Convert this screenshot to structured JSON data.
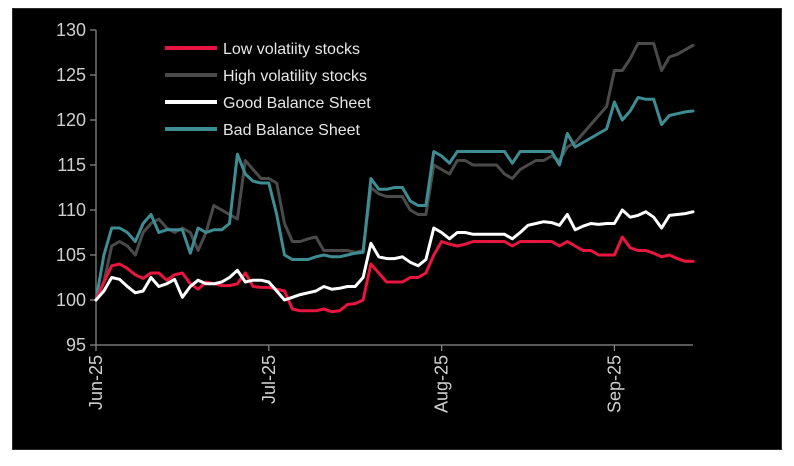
{
  "chart_data": {
    "type": "line",
    "title": "",
    "xlabel": "",
    "ylabel": "",
    "ylim": [
      95,
      130
    ],
    "yticks": [
      95,
      100,
      105,
      110,
      115,
      120,
      125,
      130
    ],
    "xtick_labels": [
      "Jun-25",
      "Jul-25",
      "Aug-25",
      "Sep-25"
    ],
    "xtick_index": [
      0,
      22,
      44,
      66
    ],
    "legend_position": "top-left",
    "grid": false,
    "series": [
      {
        "name": "Low volatiity stocks",
        "color": "#e8153f",
        "values": [
          100,
          102,
          103.8,
          104,
          103.5,
          102.8,
          102.4,
          103,
          103,
          102.2,
          102.8,
          103,
          101.8,
          101.2,
          102,
          101.8,
          101.6,
          101.6,
          101.8,
          103,
          101.5,
          101.4,
          101.4,
          101.2,
          101,
          99,
          98.8,
          98.8,
          98.8,
          99,
          98.7,
          98.8,
          99.5,
          99.6,
          100,
          104,
          103,
          102,
          102,
          102,
          102.5,
          102.5,
          103,
          105,
          106.5,
          106.2,
          106,
          106.2,
          106.5,
          106.5,
          106.5,
          106.5,
          106.5,
          106,
          106.5,
          106.5,
          106.5,
          106.5,
          106.5,
          106,
          106.5,
          106,
          105.5,
          105.5,
          105,
          105,
          105,
          107,
          105.8,
          105.5,
          105.5,
          105.2,
          104.8,
          105,
          104.6,
          104.3,
          104.3
        ]
      },
      {
        "name": "High volatility stocks",
        "color": "#4a4a4a",
        "values": [
          100,
          102,
          106,
          106.5,
          106,
          105,
          107.5,
          108.5,
          109,
          108,
          107.5,
          108,
          107.5,
          105.5,
          107.5,
          110.5,
          110,
          109.5,
          109,
          115.5,
          114.5,
          113.5,
          113.5,
          113,
          108.5,
          106.5,
          106.5,
          106.8,
          107,
          105.5,
          105.5,
          105.5,
          105.5,
          105.3,
          105.5,
          112.5,
          111.8,
          111.5,
          111.5,
          111.5,
          110,
          109.5,
          109.5,
          115,
          114.5,
          114,
          115.5,
          115.5,
          115,
          115,
          115,
          115,
          114,
          113.5,
          114.5,
          115,
          115.5,
          115.5,
          116,
          115.5,
          117,
          117.5,
          118.5,
          119.5,
          120.5,
          121.5,
          125.5,
          125.5,
          126.8,
          128.5,
          128.5,
          128.5,
          125.5,
          127,
          127.3,
          127.8,
          128.3
        ]
      },
      {
        "name": "Good Balance Sheet",
        "color": "#ffffff",
        "values": [
          100,
          101,
          102.5,
          102.3,
          101.5,
          100.8,
          101,
          102.5,
          101.5,
          101.8,
          102.3,
          100.3,
          101.5,
          102.2,
          101.8,
          101.8,
          102,
          102.5,
          103.3,
          102,
          102.2,
          102.2,
          102,
          101,
          100,
          100.3,
          100.6,
          100.8,
          101,
          101.5,
          101.2,
          101.3,
          101.5,
          101.5,
          102.5,
          106.3,
          104.8,
          104.6,
          104.6,
          104.8,
          104.2,
          103.8,
          104.5,
          108,
          107.5,
          106.8,
          107.5,
          107.5,
          107.3,
          107.3,
          107.3,
          107.3,
          107.3,
          106.8,
          107.5,
          108.3,
          108.5,
          108.7,
          108.6,
          108.3,
          109.5,
          107.8,
          108.2,
          108.5,
          108.4,
          108.5,
          108.5,
          110,
          109.2,
          109.4,
          109.8,
          109.2,
          108,
          109.4,
          109.5,
          109.6,
          109.8
        ]
      },
      {
        "name": "Bad Balance Sheet",
        "color": "#3d8d93",
        "values": [
          100,
          105,
          108,
          108,
          107.5,
          106.5,
          108.5,
          109.5,
          107.5,
          107.8,
          107.8,
          107.8,
          105.2,
          108,
          107.5,
          107.8,
          107.8,
          108.5,
          116.2,
          114,
          113.2,
          113,
          113,
          109.5,
          105,
          104.5,
          104.5,
          104.5,
          104.8,
          105,
          104.8,
          104.8,
          105,
          105.2,
          105.3,
          113.5,
          112.3,
          112.3,
          112.5,
          112.5,
          111,
          110.5,
          110.5,
          116.5,
          116,
          115.2,
          116.5,
          116.5,
          116.5,
          116.5,
          116.5,
          116.5,
          116.5,
          115.2,
          116.5,
          116.5,
          116.5,
          116.5,
          116.5,
          115,
          118.5,
          117,
          117.5,
          118,
          118.5,
          119,
          122,
          120,
          121,
          122.5,
          122.3,
          122.3,
          119.5,
          120.5,
          120.7,
          120.9,
          121
        ]
      }
    ]
  }
}
